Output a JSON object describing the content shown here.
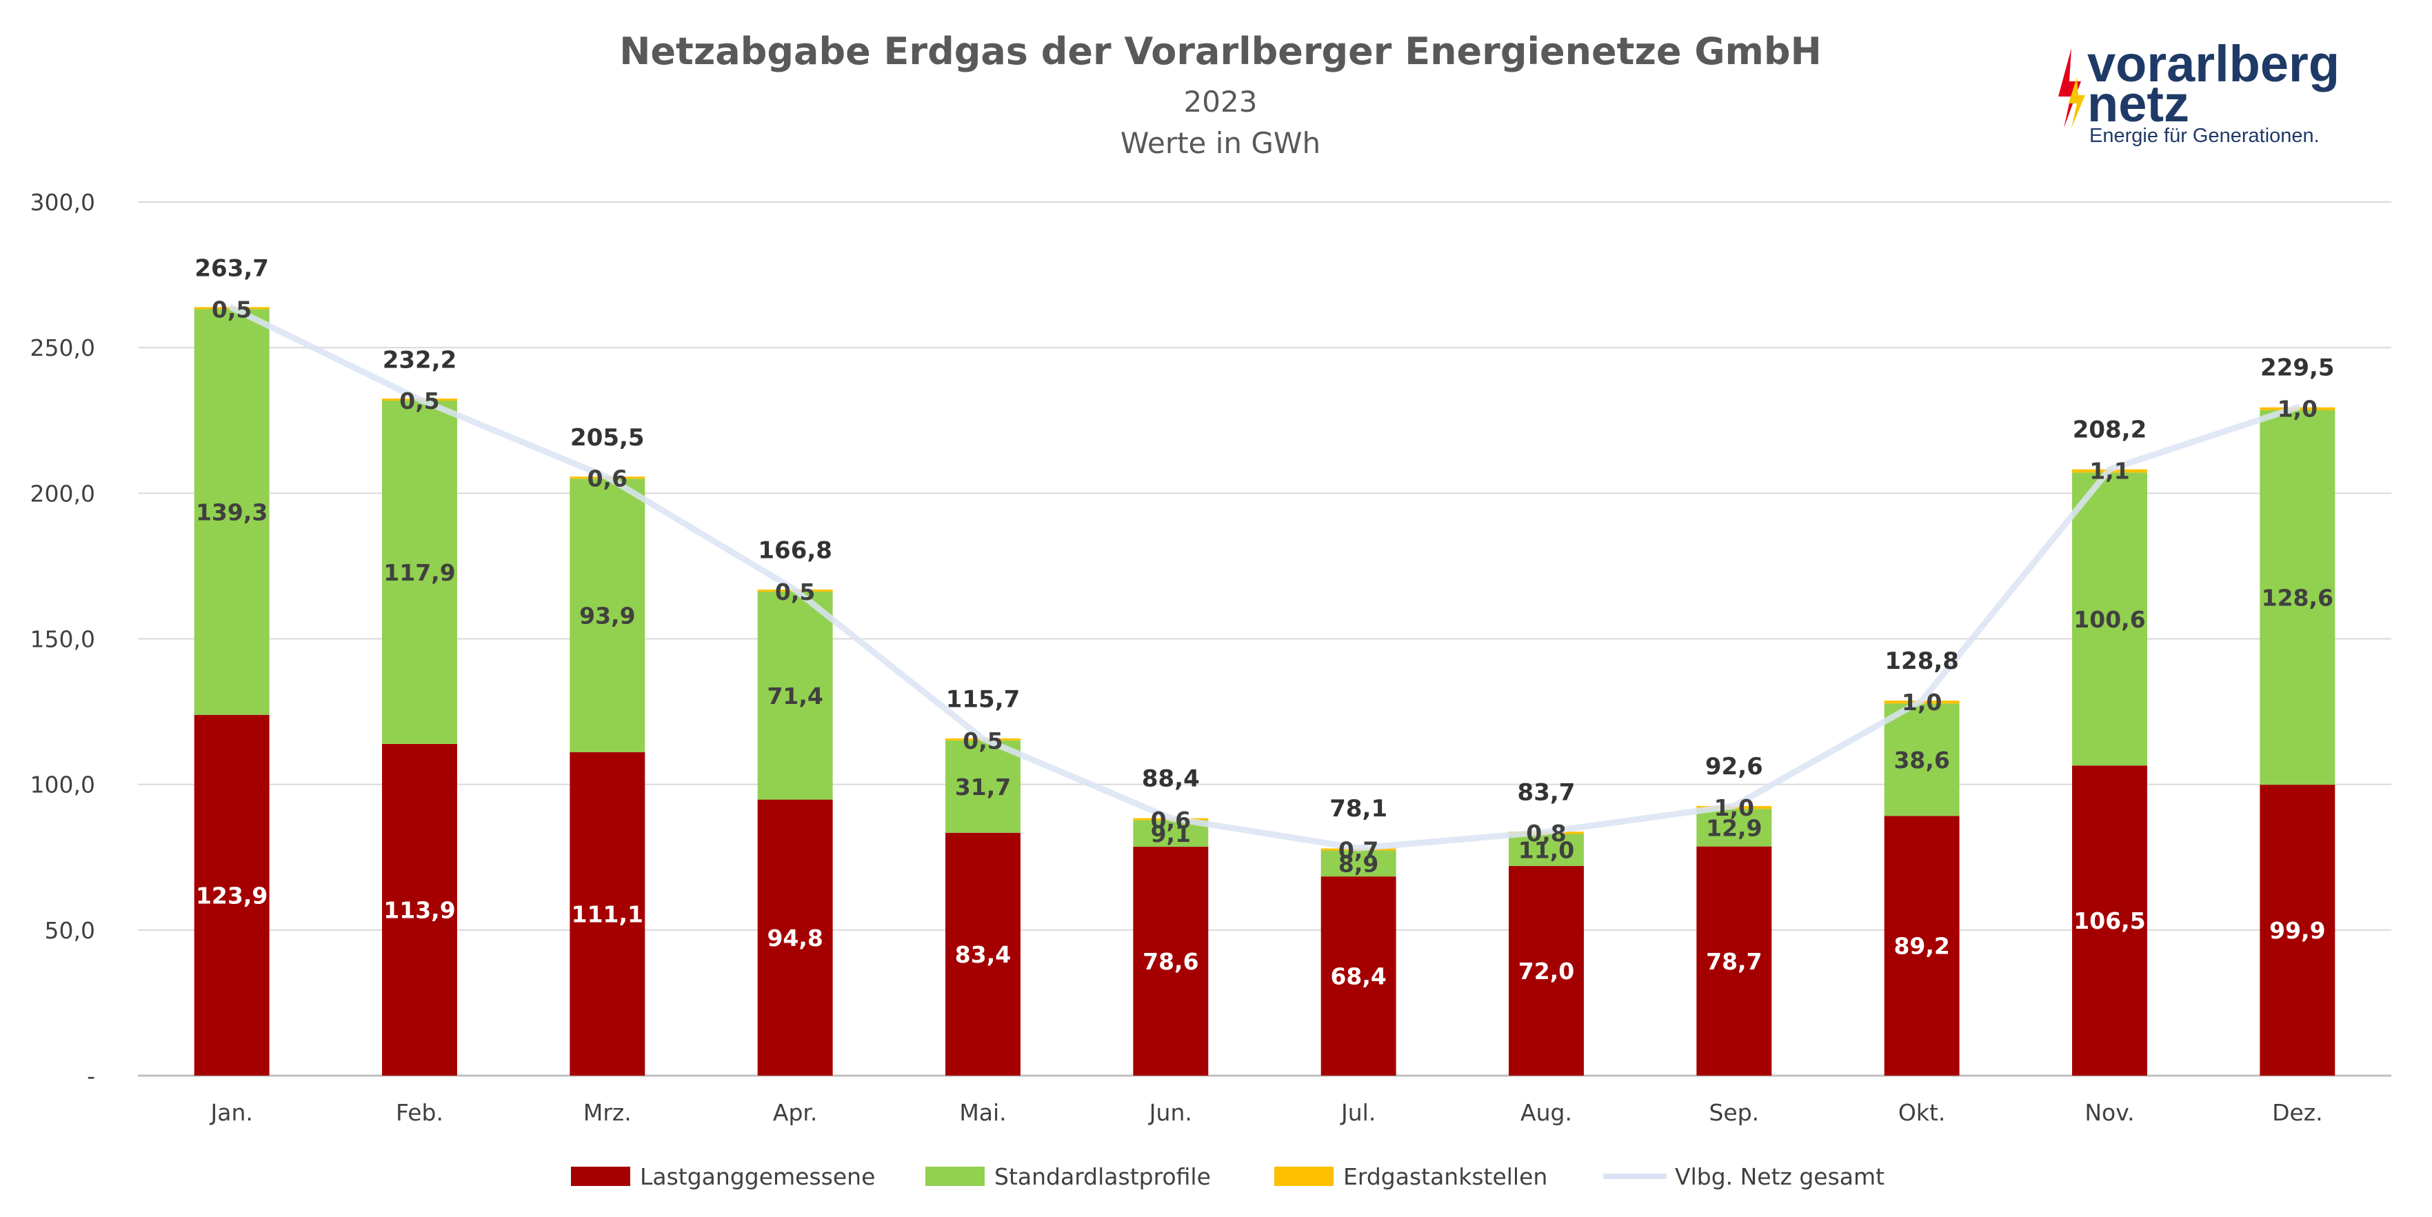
{
  "logo": {
    "line1": "vorarlberg",
    "line2": "netz",
    "tagline": "Energie für Generationen.",
    "colors": {
      "text": "#1f3a66",
      "flash_red": "#e2001a",
      "flash_yellow": "#f7c600"
    }
  },
  "chart_data": {
    "type": "bar",
    "stacked": true,
    "title": "Netzabgabe Erdgas der Vorarlberger Energienetze GmbH",
    "subtitle": "2023",
    "subtitle2": "Werte in GWh",
    "ylim": [
      0,
      300
    ],
    "yticks": [
      0,
      50,
      100,
      150,
      200,
      250,
      300
    ],
    "ytick_labels": [
      "-",
      "50,0",
      "100,0",
      "150,0",
      "200,0",
      "250,0",
      "300,0"
    ],
    "grid": true,
    "legend_position": "bottom",
    "categories": [
      "Jan.",
      "Feb.",
      "Mrz.",
      "Apr.",
      "Mai.",
      "Jun.",
      "Jul.",
      "Aug.",
      "Sep.",
      "Okt.",
      "Nov.",
      "Dez."
    ],
    "series": [
      {
        "name": "Lastganggemessene",
        "color": "#a50000",
        "label_color": "#ffffff",
        "values": [
          123.9,
          113.9,
          111.1,
          94.8,
          83.4,
          78.6,
          68.4,
          72.0,
          78.7,
          89.2,
          106.5,
          99.9
        ],
        "labels": [
          "123,9",
          "113,9",
          "111,1",
          "94,8",
          "83,4",
          "78,6",
          "68,4",
          "72,0",
          "78,7",
          "89,2",
          "106,5",
          "99,9"
        ]
      },
      {
        "name": "Standardlastprofile",
        "color": "#92d050",
        "label_color": "#404040",
        "values": [
          139.3,
          117.9,
          93.9,
          71.4,
          31.7,
          9.1,
          8.9,
          11.0,
          12.9,
          38.6,
          100.6,
          128.6
        ],
        "labels": [
          "139,3",
          "117,9",
          "93,9",
          "71,4",
          "31,7",
          "9,1",
          "8,9",
          "11,0",
          "12,9",
          "38,6",
          "100,6",
          "128,6"
        ]
      },
      {
        "name": "Erdgastankstellen",
        "color": "#ffc000",
        "label_color": "#404040",
        "values": [
          0.5,
          0.5,
          0.6,
          0.5,
          0.5,
          0.6,
          0.7,
          0.8,
          1.0,
          1.0,
          1.1,
          1.0
        ],
        "labels": [
          "0,5",
          "0,5",
          "0,6",
          "0,5",
          "0,5",
          "0,6",
          "0,7",
          "0,8",
          "1,0",
          "1,0",
          "1,1",
          "1,0"
        ]
      }
    ],
    "line_series": {
      "name": "Vlbg. Netz gesamt",
      "color": "#dae3f3",
      "values": [
        263.7,
        232.2,
        205.5,
        166.8,
        115.7,
        88.4,
        78.1,
        83.7,
        92.6,
        128.8,
        208.2,
        229.5
      ],
      "labels": [
        "263,7",
        "232,2",
        "205,5",
        "166,8",
        "115,7",
        "88,4",
        "78,1",
        "83,7",
        "92,6",
        "128,8",
        "208,2",
        "229,5"
      ]
    }
  }
}
